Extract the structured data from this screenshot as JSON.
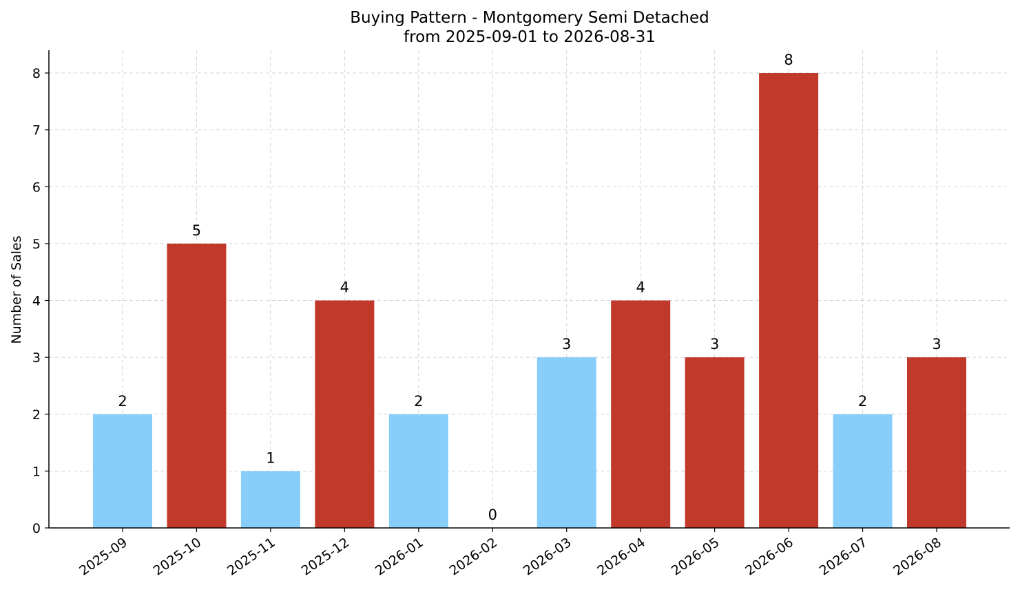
{
  "chart_data": {
    "type": "bar",
    "title": "Buying Pattern - Montgomery Semi Detached",
    "subtitle": "from 2025-09-01 to 2026-08-31",
    "xlabel": "",
    "ylabel": "Number of Sales",
    "categories": [
      "2025-09",
      "2025-10",
      "2025-11",
      "2025-12",
      "2026-01",
      "2026-02",
      "2026-03",
      "2026-04",
      "2026-05",
      "2026-06",
      "2026-07",
      "2026-08"
    ],
    "values": [
      2,
      5,
      1,
      4,
      2,
      0,
      3,
      4,
      3,
      8,
      2,
      3
    ],
    "bar_colors": [
      "#87CEFA",
      "#C0392B",
      "#87CEFA",
      "#C0392B",
      "#87CEFA",
      "#87CEFA",
      "#87CEFA",
      "#C0392B",
      "#C0392B",
      "#C0392B",
      "#87CEFA",
      "#C0392B"
    ],
    "ylim": [
      0,
      8.4
    ],
    "yticks": [
      0,
      1,
      2,
      3,
      4,
      5,
      6,
      7,
      8
    ],
    "grid": true,
    "show_data_labels": true
  }
}
